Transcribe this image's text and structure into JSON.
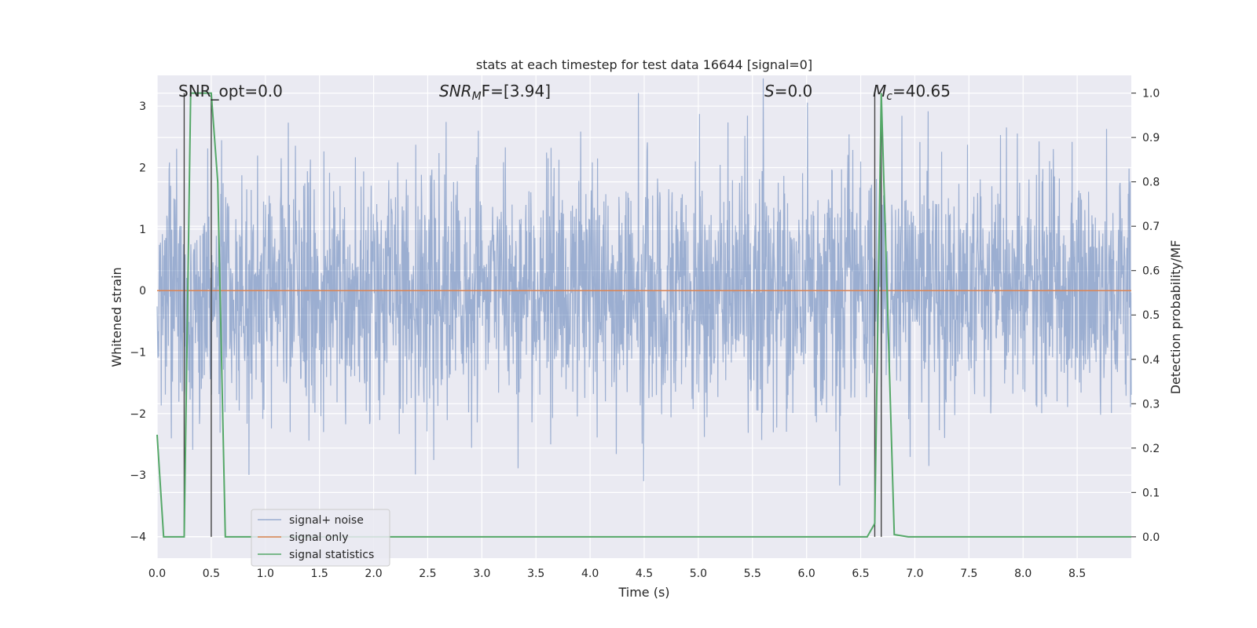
{
  "chart_data": {
    "type": "line",
    "title": "stats at each timestep for test data 16644 [signal=0]",
    "xlabel": "Time (s)",
    "ylabel": "Whitened strain",
    "y2label": "Detection probability/MF",
    "xlim": [
      0.0,
      9.0
    ],
    "ylim": [
      -4.35,
      3.5
    ],
    "y2lim": [
      -0.048,
      1.04
    ],
    "xticks": [
      "0.0",
      "0.5",
      "1.0",
      "1.5",
      "2.0",
      "2.5",
      "3.0",
      "3.5",
      "4.0",
      "4.5",
      "5.0",
      "5.5",
      "6.0",
      "6.5",
      "7.0",
      "7.5",
      "8.0",
      "8.5"
    ],
    "yticks": [
      "3",
      "2",
      "1",
      "0",
      "−1",
      "−2",
      "−3",
      "−4"
    ],
    "y2ticks": [
      "1.0",
      "0.9",
      "0.8",
      "0.7",
      "0.6",
      "0.5",
      "0.4",
      "0.3",
      "0.2",
      "0.1",
      "0.0"
    ],
    "grid": true,
    "legend_position": "lower-left",
    "annotations": {
      "snr_opt": "SNR_opt=0.0",
      "snr_mf_label": "SNR",
      "snr_mf_sub": "M",
      "snr_mf_tail": "F=[3.94]",
      "s_label": "S",
      "s_tail": "=0.0",
      "mc_label": "M",
      "mc_sub": "c",
      "mc_tail": "=40.65"
    },
    "vertical_lines_x": [
      0.25,
      0.5,
      6.63,
      6.69
    ],
    "series": [
      {
        "name": "signal+ noise",
        "color": "#4c72b0",
        "description_values": {
          "typical_range": [
            -1.5,
            1.5
          ],
          "max_peak": 3.5,
          "min_peak": -4.0
        }
      },
      {
        "name": "signal only",
        "color": "#dd8452",
        "x": [
          0.0,
          9.0
        ],
        "y": [
          0.0,
          0.0
        ]
      },
      {
        "name": "signal statistics",
        "color": "#55a868",
        "axis": "right",
        "x": [
          0.0,
          0.06,
          0.25,
          0.31,
          0.34,
          0.5,
          0.56,
          0.63,
          0.69,
          6.56,
          6.63,
          6.69,
          6.81,
          6.94,
          7.0,
          9.0
        ],
        "y": [
          0.23,
          0.0,
          0.0,
          1.0,
          1.0,
          1.0,
          0.8,
          0.0,
          0.0,
          0.0,
          0.03,
          1.0,
          0.005,
          0.0,
          0.0,
          0.0
        ]
      }
    ]
  }
}
